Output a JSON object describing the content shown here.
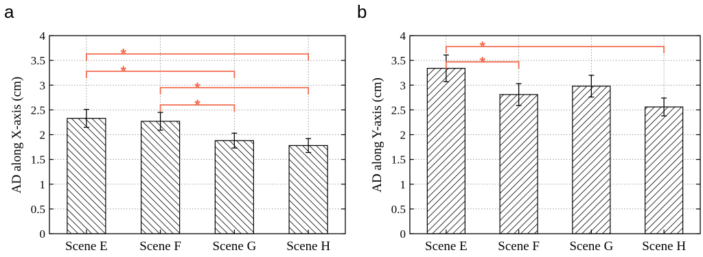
{
  "figure": {
    "colors": {
      "significance": "#f26b4f",
      "bar_fill": "#ffffff",
      "bar_hatch": "#000000",
      "grid": "#7a7a7a"
    }
  },
  "chart_data": [
    {
      "panel_label": "a",
      "type": "bar",
      "categories": [
        "Scene E",
        "Scene F",
        "Scene G",
        "Scene H"
      ],
      "values": [
        2.33,
        2.27,
        1.88,
        1.78
      ],
      "error": [
        0.18,
        0.18,
        0.15,
        0.14
      ],
      "ylabel": "AD  along X-axis  (cm)",
      "xlabel": "",
      "ylim": [
        0,
        4
      ],
      "yticks": [
        0,
        0.5,
        1,
        1.5,
        2,
        2.5,
        3,
        3.5,
        4
      ],
      "ytick_labels": [
        "0",
        "0.5",
        "1",
        "1.5",
        "2",
        "2.5",
        "3",
        "3.5",
        "4"
      ],
      "grid": true,
      "hatch": "backslash",
      "significance": [
        {
          "from": 0,
          "to": 3,
          "y": 3.63,
          "label": "*"
        },
        {
          "from": 0,
          "to": 2,
          "y": 3.28,
          "label": "*"
        },
        {
          "from": 1,
          "to": 3,
          "y": 2.95,
          "label": "*"
        },
        {
          "from": 1,
          "to": 2,
          "y": 2.6,
          "label": "*"
        }
      ]
    },
    {
      "panel_label": "b",
      "type": "bar",
      "categories": [
        "Scene E",
        "Scene F",
        "Scene G",
        "Scene H"
      ],
      "values": [
        3.34,
        2.81,
        2.98,
        2.56
      ],
      "error": [
        0.27,
        0.22,
        0.22,
        0.18
      ],
      "ylabel": "AD  along Y-axis  (cm)",
      "xlabel": "",
      "ylim": [
        0,
        4
      ],
      "yticks": [
        0,
        0.5,
        1,
        1.5,
        2,
        2.5,
        3,
        3.5,
        4
      ],
      "ytick_labels": [
        "0",
        "0.5",
        "1",
        "1.5",
        "2",
        "2.5",
        "3",
        "3.5",
        "4"
      ],
      "grid": true,
      "hatch": "slash",
      "significance": [
        {
          "from": 0,
          "to": 3,
          "y": 3.78,
          "label": "*"
        },
        {
          "from": 0,
          "to": 1,
          "y": 3.47,
          "label": "*"
        }
      ]
    }
  ]
}
